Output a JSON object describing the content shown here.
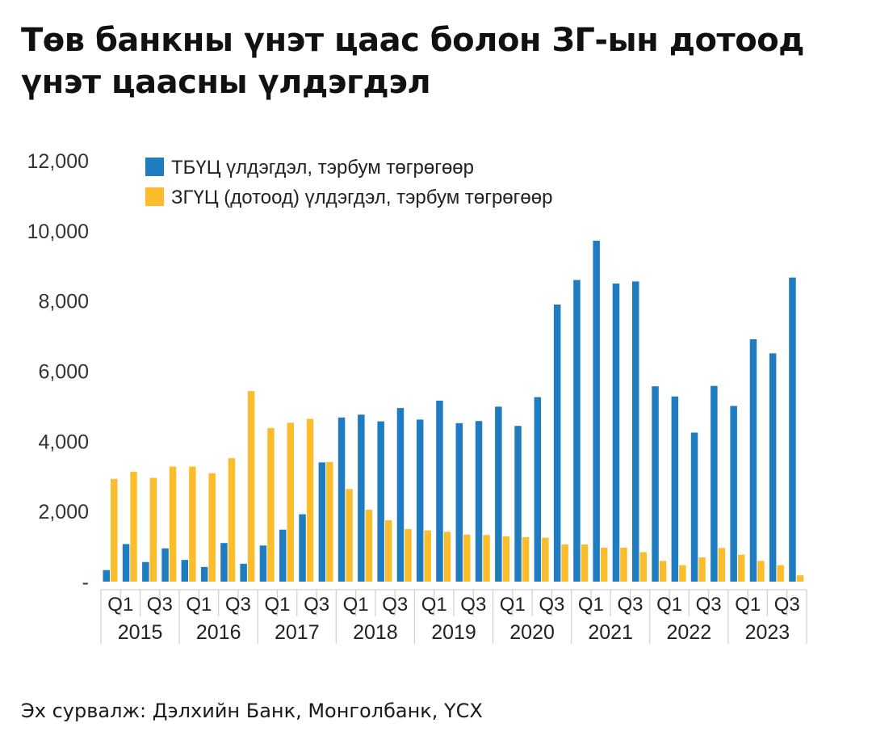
{
  "title": {
    "line1": "Төв банкны үнэт цаас болон ЗГ-ын дотоод",
    "line2": "үнэт цаасны үлдэгдэл"
  },
  "source": "Эх сурвалж: Дэлхийн Банк, Монголбанк, ҮСХ",
  "chart_data": {
    "type": "bar",
    "title": "Төв банкны үнэт цаас болон ЗГ-ын дотоод үнэт цаасны үлдэгдэл",
    "ylim": [
      0,
      12000
    ],
    "yticks": [
      0,
      2000,
      4000,
      6000,
      8000,
      10000,
      12000
    ],
    "ytick_labels": [
      "-",
      "2,000",
      "4,000",
      "6,000",
      "8,000",
      "10,000",
      "12,000"
    ],
    "grid": false,
    "legend_position": "top-left",
    "colors": {
      "series1": "#1f7cc1",
      "series2": "#fbbd2b",
      "axis": "#cfcfcf",
      "year_2023": "#8a8a8a"
    },
    "years": [
      "2015",
      "2016",
      "2017",
      "2018",
      "2019",
      "2020",
      "2021",
      "2022",
      "2023"
    ],
    "quarter_labels": [
      "Q1",
      "Q3"
    ],
    "categories": [
      "2015 Q1",
      "2015 Q2",
      "2015 Q3",
      "2015 Q4",
      "2016 Q1",
      "2016 Q2",
      "2016 Q3",
      "2016 Q4",
      "2017 Q1",
      "2017 Q2",
      "2017 Q3",
      "2017 Q4",
      "2018 Q1",
      "2018 Q2",
      "2018 Q3",
      "2018 Q4",
      "2019 Q1",
      "2019 Q2",
      "2019 Q3",
      "2019 Q4",
      "2020 Q1",
      "2020 Q2",
      "2020 Q3",
      "2020 Q4",
      "2021 Q1",
      "2021 Q2",
      "2021 Q3",
      "2021 Q4",
      "2022 Q1",
      "2022 Q2",
      "2022 Q3",
      "2022 Q4",
      "2023 Q1",
      "2023 Q2",
      "2023 Q3",
      "2023 Q4"
    ],
    "series": [
      {
        "name": "ТБҮЦ үлдэгдэл, тэрбум төгрөгөөр",
        "values": [
          330,
          1070,
          560,
          950,
          620,
          420,
          1100,
          510,
          1030,
          1480,
          1920,
          3400,
          4680,
          4760,
          4570,
          4950,
          4620,
          5160,
          4520,
          4580,
          4990,
          4440,
          5260,
          7900,
          8600,
          9720,
          8500,
          8560,
          5570,
          5280,
          4250,
          5580,
          5010,
          6910,
          6510,
          8670
        ]
      },
      {
        "name": "ЗГҮЦ (дотоод) үлдэгдэл, тэрбум төгрөгөөр",
        "values": [
          2930,
          3130,
          2960,
          3280,
          3280,
          3090,
          3520,
          5430,
          4380,
          4530,
          4640,
          3410,
          2640,
          2050,
          1750,
          1500,
          1460,
          1420,
          1340,
          1330,
          1290,
          1270,
          1250,
          1060,
          1060,
          970,
          970,
          840,
          590,
          470,
          690,
          960,
          770,
          590,
          470,
          180
        ]
      }
    ]
  }
}
